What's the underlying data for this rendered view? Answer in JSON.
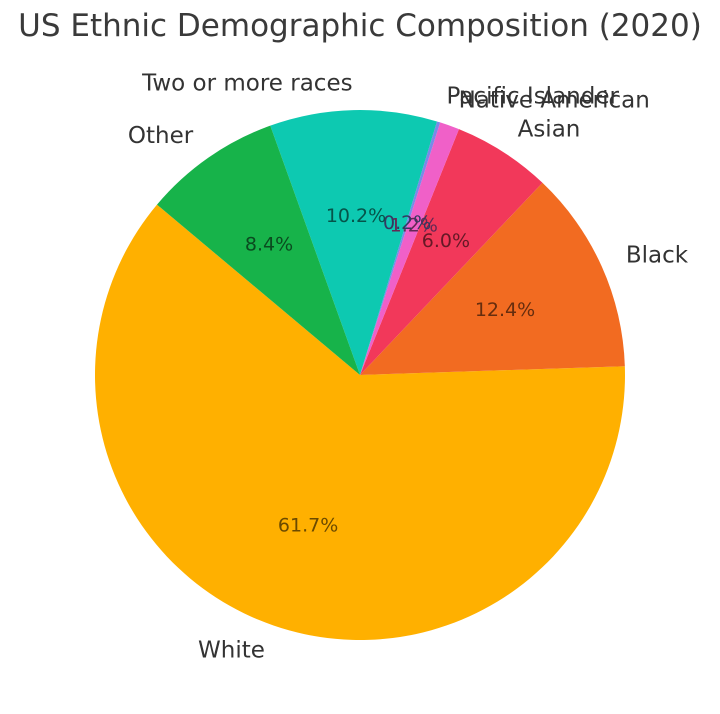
{
  "figure": {
    "background": "#ffffff"
  },
  "chart_data": {
    "type": "pie",
    "title": "US Ethnic Demographic Composition (2020)",
    "start_angle_deg": 140,
    "direction": "counterclockwise",
    "category_labels_position": "outside",
    "percent_labels_position": "inside",
    "categories": [
      "White",
      "Black",
      "Asian",
      "Native American",
      "Pacific Islander",
      "Two or more races",
      "Other"
    ],
    "values": [
      61.7,
      12.4,
      6.0,
      1.2,
      0.2,
      10.2,
      8.4
    ],
    "percent_labels": [
      "61.7%",
      "12.4%",
      "6.0%",
      "1.2%",
      "0.2%",
      "10.2%",
      "8.4%"
    ],
    "colors": [
      "#FFB000",
      "#F26B21",
      "#F2385A",
      "#F060C8",
      "#7B88E8",
      "#0DC9B1",
      "#17B34A"
    ],
    "label_text_color": "#333333",
    "title_color": "#3a3a3a"
  }
}
